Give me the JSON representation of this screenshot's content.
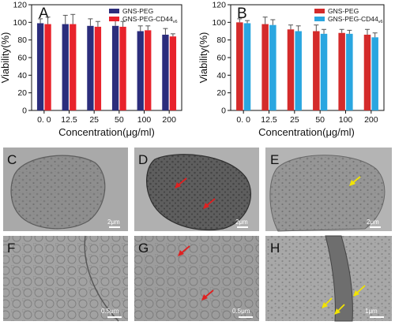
{
  "chart_data": [
    {
      "panel": "A",
      "type": "bar",
      "categories": [
        "0. 0",
        "12.5",
        "25",
        "50",
        "100",
        "200"
      ],
      "series": [
        {
          "name": "GNS-PEG",
          "values": [
            99,
            98,
            96,
            96,
            90,
            86
          ],
          "errors": [
            5,
            10,
            8,
            7,
            6,
            7
          ]
        },
        {
          "name": "GNS-PEG-CD44",
          "name_subscript": "v6",
          "values": [
            98,
            98,
            95,
            95,
            91,
            84
          ],
          "errors": [
            8,
            11,
            6,
            6,
            5,
            3
          ]
        }
      ],
      "xlabel": "Concentration(μg/ml)",
      "ylabel": "Viability(%)",
      "ylim": [
        0,
        120
      ],
      "yticks": [
        0,
        20,
        40,
        60,
        80,
        100,
        120
      ],
      "legend": "top-right"
    },
    {
      "panel": "B",
      "type": "bar",
      "categories": [
        "0. 0",
        "12.5",
        "25",
        "50",
        "100",
        "200"
      ],
      "series": [
        {
          "name": "GNS-PEG",
          "values": [
            100,
            98,
            92,
            90,
            88,
            86
          ],
          "errors": [
            4,
            8,
            5,
            7,
            4,
            6
          ]
        },
        {
          "name": "GNS-PEG-CD44",
          "name_subscript": "v6",
          "values": [
            99,
            97,
            90,
            87,
            87,
            83
          ],
          "errors": [
            3,
            6,
            6,
            5,
            4,
            5
          ]
        }
      ],
      "xlabel": "Concentration(μg/ml)",
      "ylabel": "Viability(%)",
      "ylim": [
        0,
        120
      ],
      "yticks": [
        0,
        20,
        40,
        60,
        80,
        100,
        120
      ],
      "legend": "top-right"
    }
  ],
  "colors": {
    "a_series1": "#2b2d7c",
    "a_series2": "#e8232c",
    "b_series1": "#d42b2b",
    "b_series2": "#2aa6e0",
    "error_bar": "#555555",
    "em_background": "#a9a9a9",
    "arrow_red": "#e02020",
    "arrow_yellow": "#f2e400"
  },
  "em_panels": [
    {
      "letter": "C",
      "scale_label": "2μm"
    },
    {
      "letter": "D",
      "scale_label": "2μm"
    },
    {
      "letter": "E",
      "scale_label": "2μm"
    },
    {
      "letter": "F",
      "scale_label": "0.5μm"
    },
    {
      "letter": "G",
      "scale_label": "0.5μm"
    },
    {
      "letter": "H",
      "scale_label": "1μm"
    }
  ]
}
